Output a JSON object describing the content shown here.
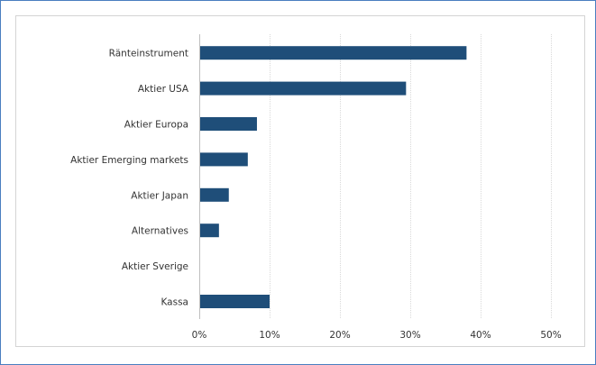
{
  "chart_data": {
    "type": "bar",
    "orientation": "horizontal",
    "categories": [
      "Ränteinstrument",
      "Aktier USA",
      "Aktier Europa",
      "Aktier Emerging markets",
      "Aktier Japan",
      "Alternatives",
      "Aktier Sverige",
      "Kassa"
    ],
    "values": [
      0.38,
      0.294,
      0.082,
      0.069,
      0.042,
      0.028,
      0.0,
      0.1
    ],
    "xlim": [
      0,
      0.5
    ],
    "xticks": [
      0,
      0.1,
      0.2,
      0.3,
      0.4,
      0.5
    ],
    "xtick_labels": [
      "0%",
      "10%",
      "20%",
      "30%",
      "40%",
      "50%"
    ],
    "grid": "vertical",
    "bar_color": "#1f4e79",
    "grid_color": "#d9d9d9"
  }
}
